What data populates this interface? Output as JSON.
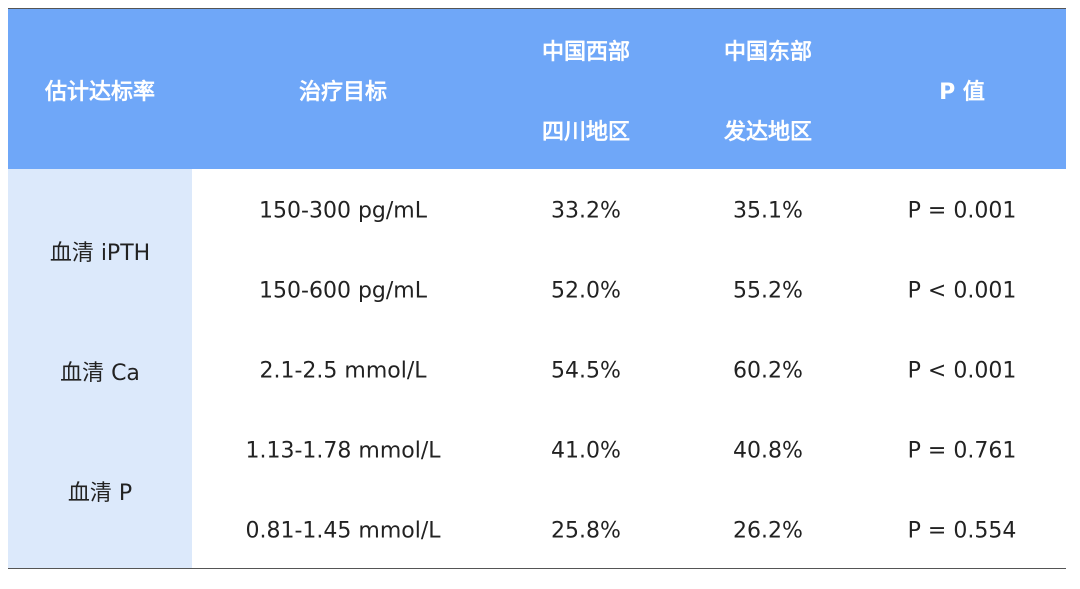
{
  "table": {
    "header": [
      [
        "估计达标率"
      ],
      [
        "治疗目标"
      ],
      [
        "中国西部",
        "四川地区"
      ],
      [
        "中国东部",
        "发达地区"
      ],
      [
        "P 值"
      ]
    ],
    "groups": [
      {
        "label": "血清 iPTH",
        "rows": [
          [
            "150-300 pg/mL",
            "33.2%",
            "35.1%",
            "P = 0.001"
          ],
          [
            "150-600 pg/mL",
            "52.0%",
            "55.2%",
            "P < 0.001"
          ]
        ]
      },
      {
        "label": "血清 Ca",
        "rows": [
          [
            "2.1-2.5 mmol/L",
            "54.5%",
            "60.2%",
            "P < 0.001"
          ]
        ]
      },
      {
        "label": "血清 P",
        "rows": [
          [
            "1.13-1.78 mmol/L",
            "41.0%",
            "40.8%",
            "P = 0.761"
          ],
          [
            "0.81-1.45 mmol/L",
            "25.8%",
            "26.2%",
            "P = 0.554"
          ]
        ]
      }
    ]
  }
}
